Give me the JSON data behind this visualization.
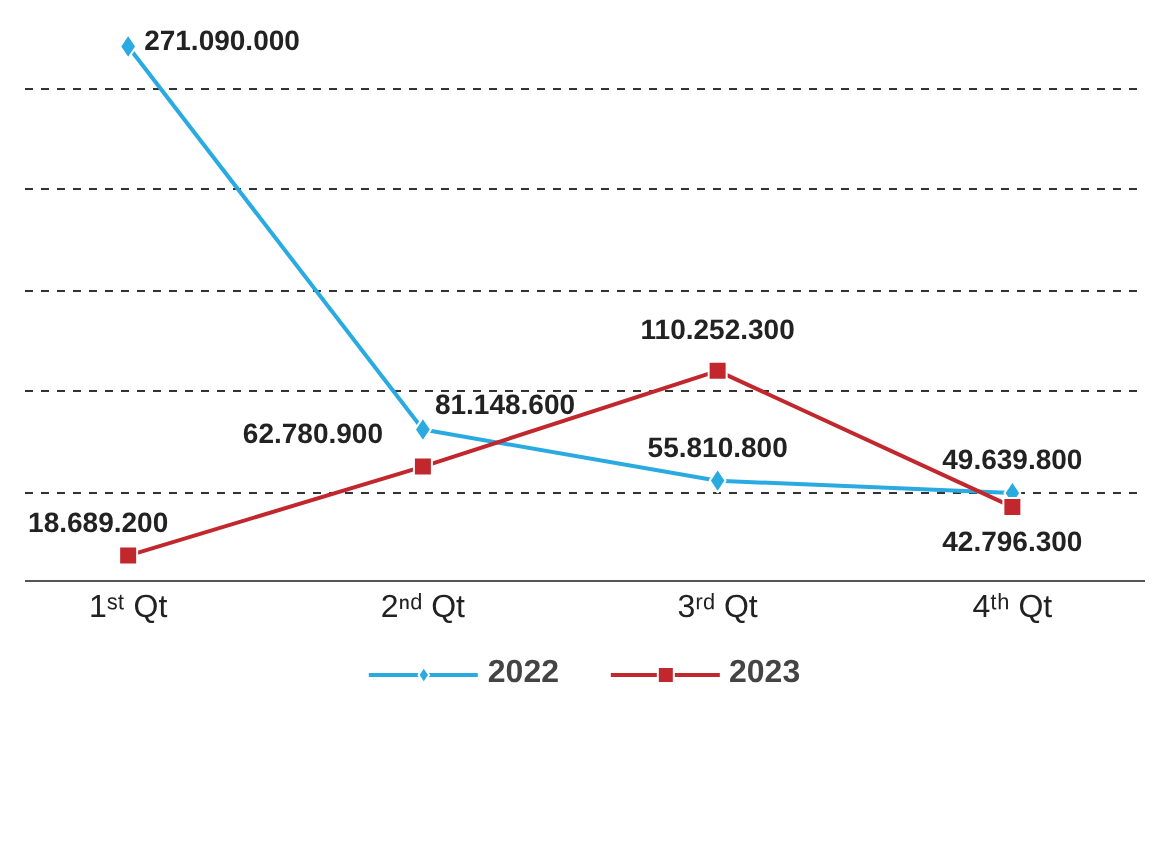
{
  "chart_data": {
    "type": "line",
    "categories": [
      "1ˢᵗ Qt",
      "2ⁿᵈ Qt",
      "3ʳᵈ Qt",
      "4ᵗʰ Qt"
    ],
    "series": [
      {
        "name": "2022",
        "color": "#29abe2",
        "marker": "diamond",
        "values": [
          271090000,
          81148600,
          55810800,
          49639800
        ],
        "value_labels": [
          "271.090.000",
          "81.148.600",
          "55.810.800",
          "49.639.800"
        ]
      },
      {
        "name": "2023",
        "color": "#c1272d",
        "marker": "square",
        "values": [
          18689200,
          62780900,
          110252300,
          42796300
        ],
        "value_labels": [
          "18.689.200",
          "62.780.900",
          "110.252.300",
          "42.796.300"
        ]
      }
    ],
    "yticks": [
      {
        "value": 50000000,
        "label": null
      },
      {
        "value": 100000000,
        "label": null
      },
      {
        "value": 150000000,
        "label": null
      },
      {
        "value": 200000000,
        "label": null
      },
      {
        "value": 250000000,
        "label": null
      }
    ],
    "tick_labels": "x",
    "grid": "y",
    "line_style": "solid",
    "legend": "bottom"
  }
}
